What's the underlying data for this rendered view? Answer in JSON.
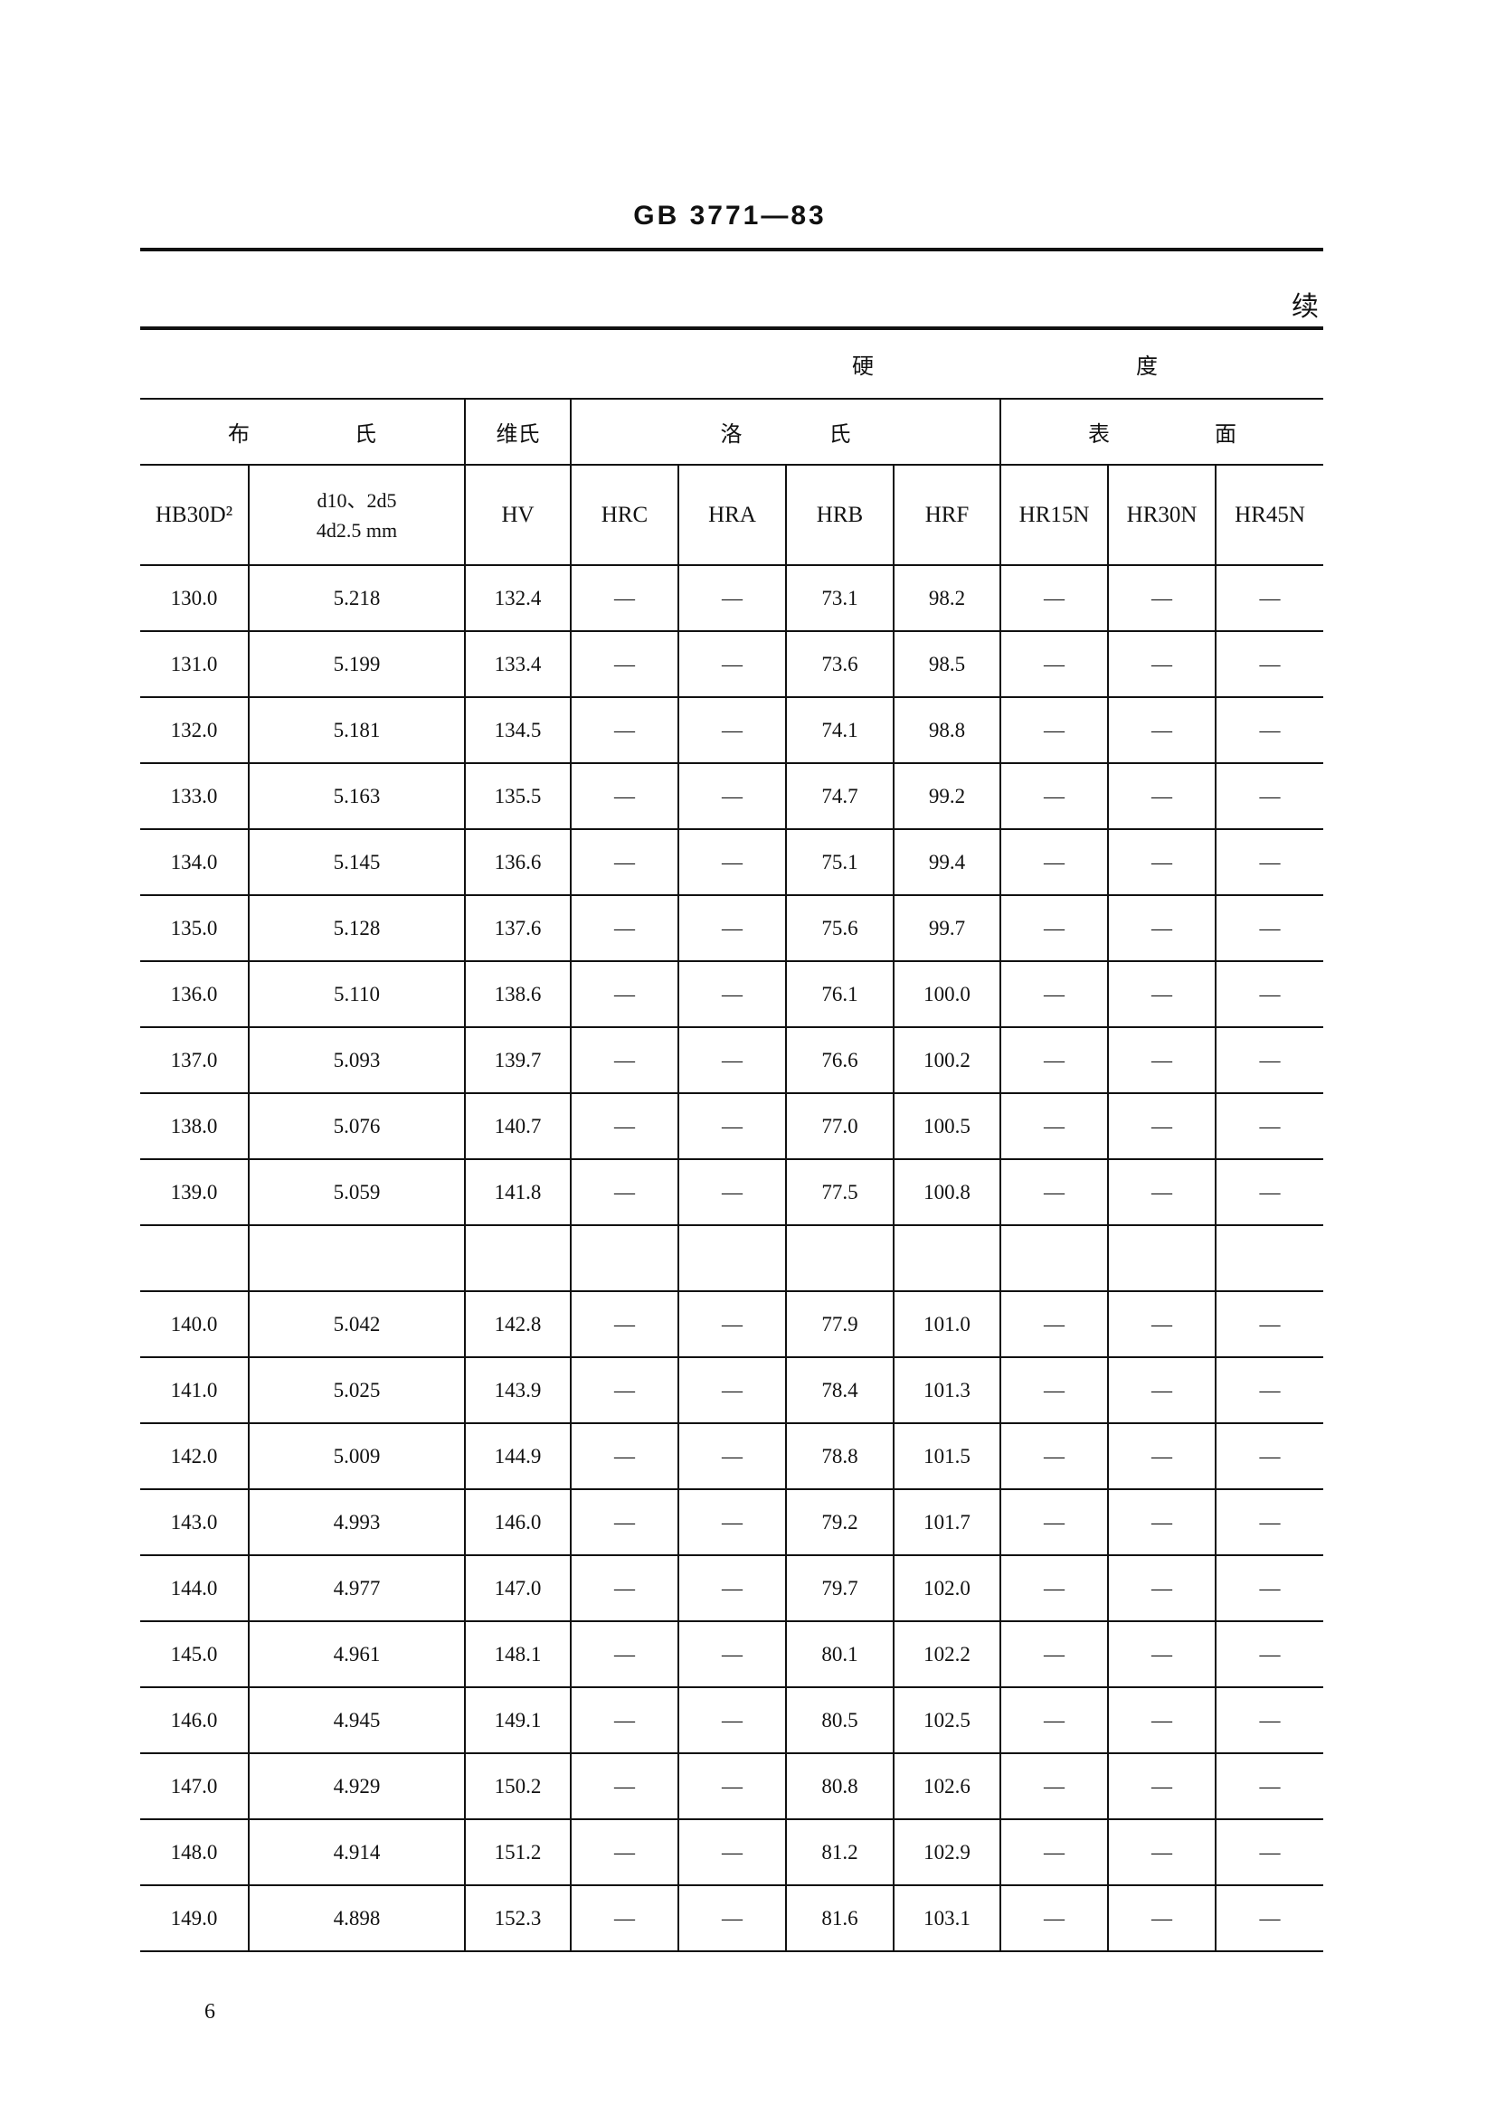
{
  "header": {
    "doc_title": "GB 3771—83",
    "continued": "续"
  },
  "table": {
    "group_row": {
      "left": "硬",
      "right": "度"
    },
    "category_row": {
      "brinell": "布 氏",
      "vickers": "维氏",
      "rockwell": "洛 氏",
      "superficial": "表 面"
    },
    "columns": [
      "HB30D²",
      "d10、2d5 4d2.5 mm",
      "HV",
      "HRC",
      "HRA",
      "HRB",
      "HRF",
      "HR15N",
      "HR30N",
      "HR45N"
    ],
    "rows": [
      [
        "130.0",
        "5.218",
        "132.4",
        "—",
        "—",
        "73.1",
        "98.2",
        "—",
        "—",
        "—"
      ],
      [
        "131.0",
        "5.199",
        "133.4",
        "—",
        "—",
        "73.6",
        "98.5",
        "—",
        "—",
        "—"
      ],
      [
        "132.0",
        "5.181",
        "134.5",
        "—",
        "—",
        "74.1",
        "98.8",
        "—",
        "—",
        "—"
      ],
      [
        "133.0",
        "5.163",
        "135.5",
        "—",
        "—",
        "74.7",
        "99.2",
        "—",
        "—",
        "—"
      ],
      [
        "134.0",
        "5.145",
        "136.6",
        "—",
        "—",
        "75.1",
        "99.4",
        "—",
        "—",
        "—"
      ],
      [
        "135.0",
        "5.128",
        "137.6",
        "—",
        "—",
        "75.6",
        "99.7",
        "—",
        "—",
        "—"
      ],
      [
        "136.0",
        "5.110",
        "138.6",
        "—",
        "—",
        "76.1",
        "100.0",
        "—",
        "—",
        "—"
      ],
      [
        "137.0",
        "5.093",
        "139.7",
        "—",
        "—",
        "76.6",
        "100.2",
        "—",
        "—",
        "—"
      ],
      [
        "138.0",
        "5.076",
        "140.7",
        "—",
        "—",
        "77.0",
        "100.5",
        "—",
        "—",
        "—"
      ],
      [
        "139.0",
        "5.059",
        "141.8",
        "—",
        "—",
        "77.5",
        "100.8",
        "—",
        "—",
        "—"
      ],
      [
        "",
        "",
        "",
        "",
        "",
        "",
        "",
        "",
        "",
        ""
      ],
      [
        "140.0",
        "5.042",
        "142.8",
        "—",
        "—",
        "77.9",
        "101.0",
        "—",
        "—",
        "—"
      ],
      [
        "141.0",
        "5.025",
        "143.9",
        "—",
        "—",
        "78.4",
        "101.3",
        "—",
        "—",
        "—"
      ],
      [
        "142.0",
        "5.009",
        "144.9",
        "—",
        "—",
        "78.8",
        "101.5",
        "—",
        "—",
        "—"
      ],
      [
        "143.0",
        "4.993",
        "146.0",
        "—",
        "—",
        "79.2",
        "101.7",
        "—",
        "—",
        "—"
      ],
      [
        "144.0",
        "4.977",
        "147.0",
        "—",
        "—",
        "79.7",
        "102.0",
        "—",
        "—",
        "—"
      ],
      [
        "145.0",
        "4.961",
        "148.1",
        "—",
        "—",
        "80.1",
        "102.2",
        "—",
        "—",
        "—"
      ],
      [
        "146.0",
        "4.945",
        "149.1",
        "—",
        "—",
        "80.5",
        "102.5",
        "—",
        "—",
        "—"
      ],
      [
        "147.0",
        "4.929",
        "150.2",
        "—",
        "—",
        "80.8",
        "102.6",
        "—",
        "—",
        "—"
      ],
      [
        "148.0",
        "4.914",
        "151.2",
        "—",
        "—",
        "81.2",
        "102.9",
        "—",
        "—",
        "—"
      ],
      [
        "149.0",
        "4.898",
        "152.3",
        "—",
        "—",
        "81.6",
        "103.1",
        "—",
        "—",
        "—"
      ]
    ]
  },
  "footer": {
    "page_number": "6"
  }
}
